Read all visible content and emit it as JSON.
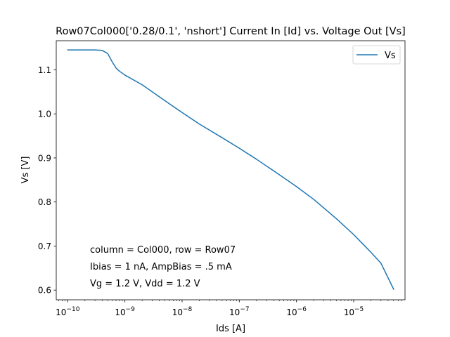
{
  "chart_data": {
    "type": "line",
    "title": "Row07Col000['0.28/0.1', 'nshort'] Current In [Id] vs. Voltage Out [Vs]",
    "xlabel": "Ids [A]",
    "ylabel": "Vs [V]",
    "xscale": "log",
    "xlim": [
      6.3e-11,
      7.9e-05
    ],
    "ylim": [
      0.578,
      1.166
    ],
    "x_ticks": [
      {
        "value": 1e-10,
        "base": "10",
        "exp": "−10"
      },
      {
        "value": 1e-09,
        "base": "10",
        "exp": "−9"
      },
      {
        "value": 1e-08,
        "base": "10",
        "exp": "−8"
      },
      {
        "value": 1e-07,
        "base": "10",
        "exp": "−7"
      },
      {
        "value": 1e-06,
        "base": "10",
        "exp": "−6"
      },
      {
        "value": 1e-05,
        "base": "10",
        "exp": "−5"
      }
    ],
    "y_ticks": [
      {
        "value": 0.6,
        "label": "0.6"
      },
      {
        "value": 0.7,
        "label": "0.7"
      },
      {
        "value": 0.8,
        "label": "0.8"
      },
      {
        "value": 0.9,
        "label": "0.9"
      },
      {
        "value": 1.0,
        "label": "1.0"
      },
      {
        "value": 1.1,
        "label": "1.1"
      }
    ],
    "grid": false,
    "legend": {
      "position": "top-right",
      "entries": [
        "Vs"
      ]
    },
    "annotations": [
      "column = Col000, row = Row07",
      "Ibias = 1 nA, AmpBias = .5 mA",
      "Vg = 1.2 V, Vdd = 1.2 V"
    ],
    "series": [
      {
        "name": "Vs",
        "color": "#1f77b4",
        "x": [
          1e-10,
          2e-10,
          3e-10,
          4e-10,
          5e-10,
          6e-10,
          7e-10,
          8e-10,
          1e-09,
          2e-09,
          5e-09,
          1e-08,
          2e-08,
          5e-08,
          1e-07,
          2e-07,
          5e-07,
          1e-06,
          2e-06,
          5e-06,
          1e-05,
          2e-05,
          3e-05,
          5e-05
        ],
        "y": [
          1.145,
          1.145,
          1.145,
          1.144,
          1.137,
          1.118,
          1.104,
          1.097,
          1.088,
          1.066,
          1.03,
          1.003,
          0.977,
          0.946,
          0.922,
          0.897,
          0.862,
          0.835,
          0.806,
          0.762,
          0.726,
          0.686,
          0.661,
          0.602
        ]
      }
    ]
  }
}
